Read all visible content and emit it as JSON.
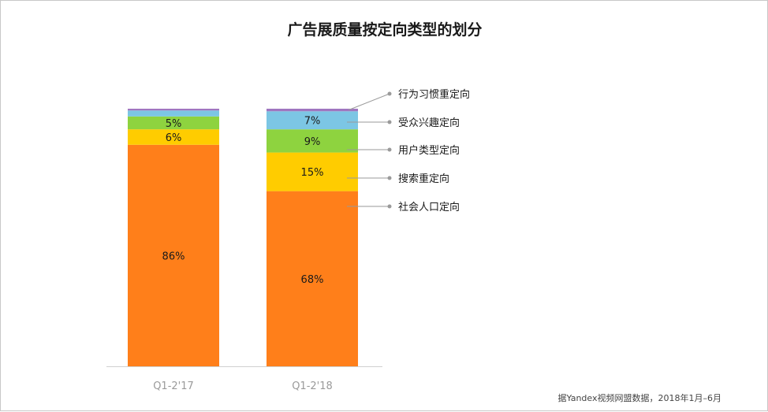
{
  "chart_data": {
    "type": "bar",
    "stacked": true,
    "title": "广告展质量按定向类型的划分",
    "categories": [
      "Q1-2'17",
      "Q1-2'18"
    ],
    "series": [
      {
        "name": "社会人口定向",
        "color": "#FF7F1A",
        "values": [
          86,
          68
        ],
        "labels": [
          "86%",
          "68%"
        ]
      },
      {
        "name": "搜索重定向",
        "color": "#FFCC00",
        "values": [
          6,
          15
        ],
        "labels": [
          "6%",
          "15%"
        ]
      },
      {
        "name": "用户类型定向",
        "color": "#8ED33F",
        "values": [
          5,
          9
        ],
        "labels": [
          "5%",
          "9%"
        ]
      },
      {
        "name": "受众兴趣定向",
        "color": "#7CC6E4",
        "values": [
          2.3,
          7
        ],
        "labels": [
          "",
          "7%"
        ]
      },
      {
        "name": "行为习惯重定向",
        "color": "#A076C0",
        "values": [
          0.7,
          1
        ],
        "labels": [
          "",
          ""
        ]
      }
    ],
    "ylim": [
      0,
      100
    ],
    "legend": "right",
    "grid": false
  },
  "source_note": "据Yandex视频网盟数据，2018年1月–6月"
}
